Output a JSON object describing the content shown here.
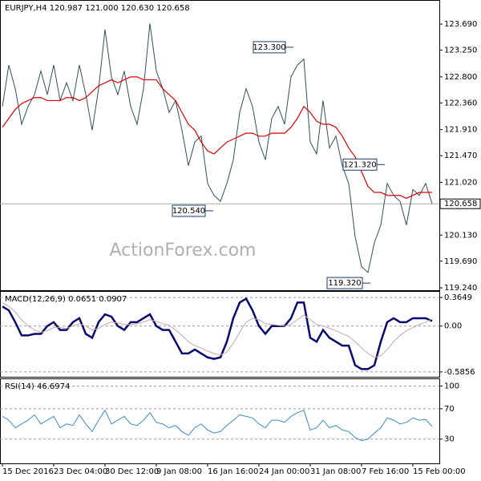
{
  "chart_data": [
    {
      "type": "line",
      "title": "EURJPY,H4 120.987 121.000 120.630 120.658",
      "watermark": "ActionForex.com",
      "ylim": [
        119.2,
        124.07
      ],
      "yticks": [
        {
          "value": 123.69,
          "label": "123.690"
        },
        {
          "value": 123.25,
          "label": "123.250"
        },
        {
          "value": 122.8,
          "label": "122.800"
        },
        {
          "value": 122.36,
          "label": "122.360"
        },
        {
          "value": 121.91,
          "label": "121.910"
        },
        {
          "value": 121.47,
          "label": "121.470"
        },
        {
          "value": 121.02,
          "label": "121.020"
        },
        {
          "value": 120.13,
          "label": "120.130"
        },
        {
          "value": 119.69,
          "label": "119.690"
        },
        {
          "value": 119.24,
          "label": "119.240"
        }
      ],
      "last": {
        "value": 120.658,
        "label": "120.658"
      },
      "annotations": [
        {
          "value": 123.3,
          "label": "123.300"
        },
        {
          "value": 121.32,
          "label": "121.320"
        },
        {
          "value": 120.54,
          "label": "120.540"
        },
        {
          "value": 119.32,
          "label": "119.320"
        }
      ],
      "series": [
        {
          "color": "#2f4f5f",
          "values": [
            122.3,
            123.0,
            122.6,
            122.0,
            122.3,
            122.5,
            122.9,
            122.5,
            123.0,
            122.4,
            122.7,
            122.4,
            123.0,
            122.5,
            121.9,
            122.6,
            123.6,
            122.8,
            122.5,
            122.9,
            122.3,
            122.0,
            122.6,
            123.7,
            122.9,
            122.6,
            122.2,
            122.4,
            121.9,
            121.3,
            121.7,
            121.8,
            121.0,
            120.8,
            120.7,
            121.0,
            121.4,
            122.2,
            122.6,
            122.3,
            121.7,
            121.4,
            122.1,
            122.3,
            122.0,
            122.8,
            123.0,
            123.1,
            121.7,
            121.5,
            122.4,
            121.6,
            121.8,
            121.3,
            121.0,
            120.1,
            119.6,
            119.5,
            120.0,
            120.3,
            121.0,
            120.8,
            120.7,
            120.3,
            120.9,
            120.8,
            121.0,
            120.66
          ]
        },
        {
          "color": "#e00000",
          "values": [
            121.95,
            122.1,
            122.25,
            122.35,
            122.4,
            122.45,
            122.45,
            122.4,
            122.4,
            122.4,
            122.45,
            122.45,
            122.4,
            122.45,
            122.55,
            122.65,
            122.7,
            122.75,
            122.7,
            122.75,
            122.8,
            122.8,
            122.75,
            122.75,
            122.75,
            122.6,
            122.5,
            122.4,
            122.2,
            122.0,
            121.9,
            121.7,
            121.55,
            121.5,
            121.6,
            121.7,
            121.75,
            121.8,
            121.85,
            121.85,
            121.8,
            121.8,
            121.85,
            121.85,
            121.85,
            121.95,
            122.1,
            122.3,
            122.2,
            122.05,
            122.0,
            122.0,
            121.95,
            121.8,
            121.6,
            121.45,
            121.2,
            120.95,
            120.85,
            120.85,
            120.8,
            120.8,
            120.8,
            120.75,
            120.8,
            120.85,
            120.85,
            120.85
          ]
        }
      ]
    },
    {
      "type": "line",
      "title": "MACD(12,26,9) 0.0651 0.0907",
      "ylim": [
        -0.648,
        0.427
      ],
      "yticks": [
        0.3649,
        {
          "value": 0,
          "label": "0.00"
        },
        -0.5856
      ],
      "series": [
        {
          "color": "#0a0a6e",
          "values": [
            0.25,
            0.2,
            0.05,
            -0.12,
            -0.12,
            -0.1,
            -0.1,
            0.0,
            0.05,
            -0.05,
            -0.05,
            0.05,
            0.1,
            -0.1,
            -0.15,
            0.05,
            0.15,
            0.12,
            0.0,
            -0.05,
            0.05,
            0.05,
            0.1,
            0.15,
            0.0,
            -0.05,
            -0.05,
            -0.2,
            -0.35,
            -0.35,
            -0.3,
            -0.35,
            -0.4,
            -0.42,
            -0.4,
            -0.2,
            0.1,
            0.3,
            0.35,
            0.2,
            0.0,
            -0.1,
            0.0,
            0.0,
            0.0,
            0.1,
            0.3,
            0.3,
            -0.15,
            -0.2,
            -0.05,
            -0.15,
            -0.2,
            -0.25,
            -0.25,
            -0.5,
            -0.55,
            -0.55,
            -0.5,
            -0.2,
            0.05,
            0.1,
            0.05,
            0.05,
            0.1,
            0.1,
            0.1,
            0.0651
          ]
        },
        {
          "color": "#c9a8a8",
          "values": [
            0.3,
            0.25,
            0.18,
            0.08,
            0.0,
            -0.05,
            -0.08,
            -0.06,
            -0.02,
            -0.02,
            -0.03,
            0.0,
            0.03,
            0.0,
            -0.05,
            -0.03,
            0.02,
            0.05,
            0.04,
            0.02,
            0.02,
            0.03,
            0.05,
            0.08,
            0.06,
            0.03,
            0.01,
            -0.05,
            -0.12,
            -0.2,
            -0.25,
            -0.28,
            -0.32,
            -0.35,
            -0.37,
            -0.33,
            -0.22,
            -0.08,
            0.05,
            0.1,
            0.08,
            0.03,
            0.02,
            0.01,
            0.0,
            0.02,
            0.08,
            0.14,
            0.08,
            0.02,
            0.0,
            -0.03,
            -0.06,
            -0.1,
            -0.13,
            -0.2,
            -0.28,
            -0.35,
            -0.4,
            -0.38,
            -0.3,
            -0.2,
            -0.12,
            -0.06,
            -0.02,
            0.02,
            0.05,
            0.0907
          ]
        }
      ]
    },
    {
      "type": "line",
      "title": "RSI(14) 46.6974",
      "ylim": [
        -2,
        108
      ],
      "yticks": [
        100,
        70,
        30
      ],
      "categories": [
        "15 Dec 2016",
        null,
        null,
        null,
        null,
        null,
        null,
        null,
        "23 Dec 04:00",
        null,
        null,
        null,
        null,
        null,
        null,
        null,
        "30 Dec 12:00",
        null,
        null,
        null,
        null,
        null,
        null,
        null,
        "9 Jan 08:00",
        null,
        null,
        null,
        null,
        null,
        null,
        null,
        "16 Jan 16:00",
        null,
        null,
        null,
        null,
        null,
        null,
        null,
        "24 Jan 00:00",
        null,
        null,
        null,
        null,
        null,
        null,
        null,
        "31 Jan 08:00",
        null,
        null,
        null,
        null,
        null,
        null,
        null,
        "7 Feb 16:00",
        null,
        null,
        null,
        null,
        null,
        null,
        null,
        "15 Feb 00:00",
        null,
        null,
        null
      ],
      "series": [
        {
          "color": "#3d8ac8",
          "values": [
            60,
            55,
            45,
            50,
            55,
            62,
            50,
            55,
            60,
            45,
            50,
            48,
            62,
            50,
            40,
            55,
            68,
            50,
            55,
            60,
            50,
            48,
            55,
            65,
            52,
            50,
            45,
            48,
            40,
            35,
            45,
            50,
            42,
            38,
            40,
            48,
            55,
            62,
            60,
            58,
            50,
            45,
            55,
            55,
            52,
            60,
            65,
            68,
            42,
            45,
            55,
            45,
            48,
            42,
            40,
            32,
            28,
            30,
            38,
            45,
            58,
            55,
            50,
            52,
            58,
            55,
            56,
            46.7
          ]
        }
      ]
    }
  ]
}
